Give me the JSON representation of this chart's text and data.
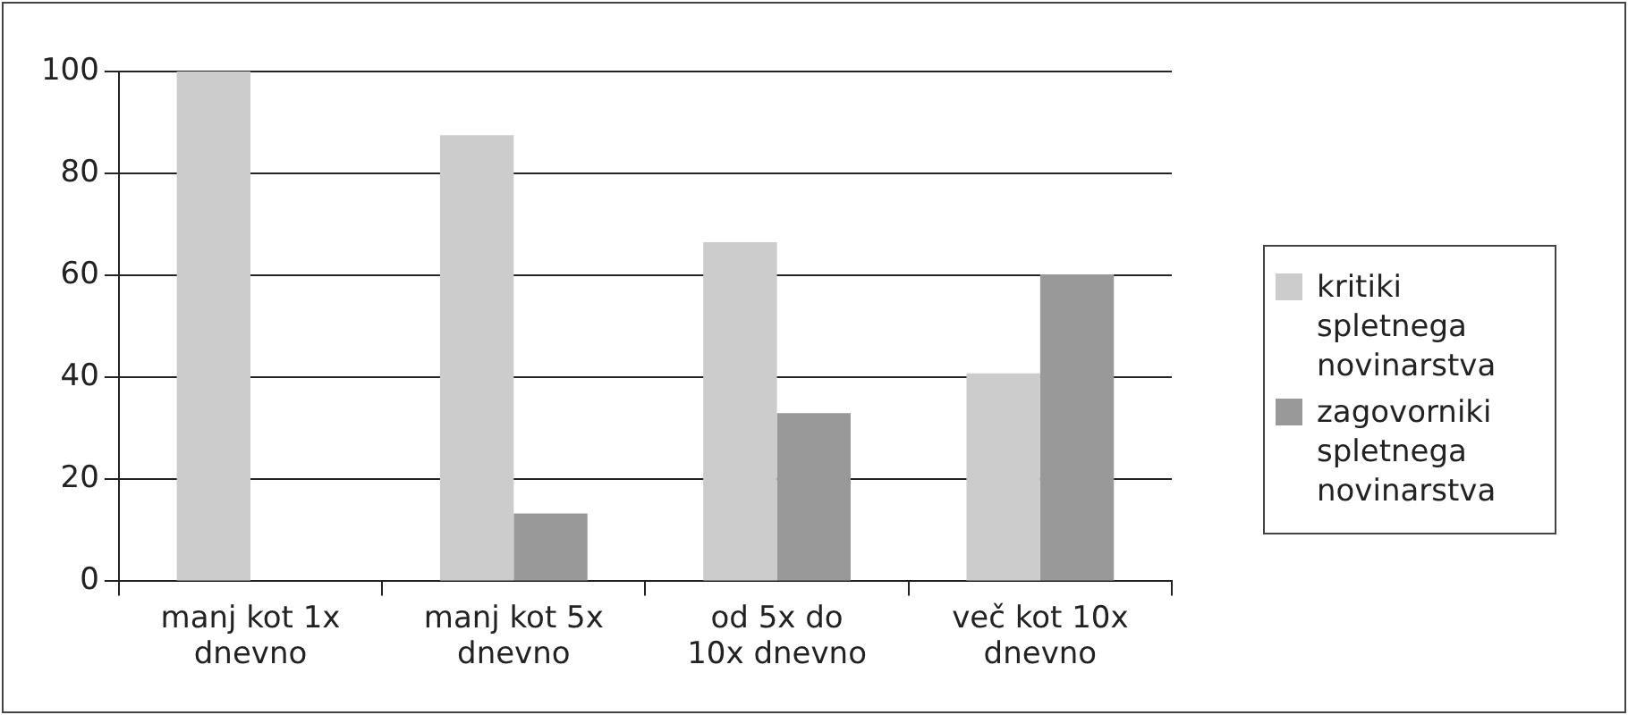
{
  "chart_data": {
    "type": "bar",
    "categories": [
      "manj kot 1x dnevno",
      "manj kot 5x dnevno",
      "od 5x do 10x dnevno",
      "več kot 10x dnevno"
    ],
    "series": [
      {
        "name": "kritiki spletnega novinarstva",
        "color": "#cccccc",
        "values": [
          100,
          87.5,
          66.5,
          40.8
        ]
      },
      {
        "name": "zagovorniki spletnega novinarstva",
        "color": "#999999",
        "values": [
          0,
          13.3,
          33,
          60.2
        ]
      }
    ],
    "ylim": [
      0,
      100
    ],
    "yticks": [
      0,
      20,
      40,
      60,
      80,
      100
    ],
    "grid": "y",
    "legend": "right"
  }
}
